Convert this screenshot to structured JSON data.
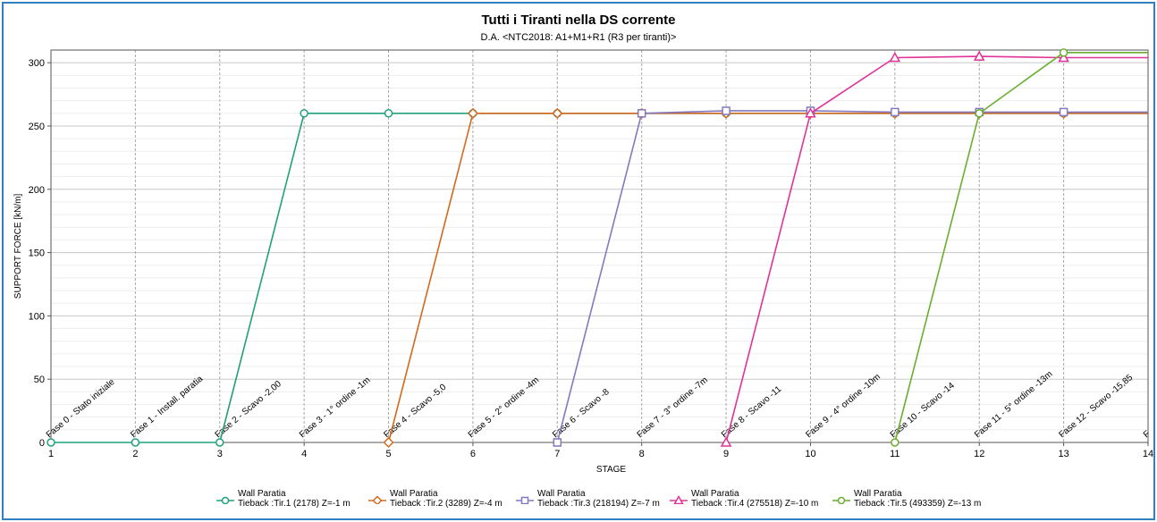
{
  "chart_data": {
    "type": "line",
    "title": "Tutti i Tiranti nella DS corrente",
    "subtitle": "D.A. <NTC2018: A1+M1+R1 (R3 per tiranti)>",
    "xlabel": "STAGE",
    "ylabel": "SUPPORT FORCE [kN/m]",
    "xlim": [
      1,
      14
    ],
    "ylim": [
      0,
      310
    ],
    "x_ticks": [
      "1",
      "2",
      "3",
      "4",
      "5",
      "6",
      "7",
      "8",
      "9",
      "10",
      "11",
      "12",
      "13",
      "14"
    ],
    "y_ticks": [
      "0",
      "50",
      "100",
      "150",
      "200",
      "250",
      "300"
    ],
    "stage_labels": [
      "Fase 0 - Stato iniziale",
      "Fase 1 - Install. paratia",
      "Fase 2 - Scavo -2,00",
      "Fase 3 - 1° ordine -1m",
      "Fase 4 - Scavo -5,0",
      "Fase 5 - 2° ordine -4m",
      "Fase 6 - Scavo -8",
      "Fase 7 - 3° ordine -7m",
      "Fase 8 - Scavo -11",
      "Fase 9 - 4° ordine -10m",
      "Fase 10 - Scavo -14",
      "Fase 11 - 5° ordine -13m",
      "Fase 12 - Scavo -15,85",
      "F"
    ],
    "grid": true,
    "legend_position": "bottom",
    "series": [
      {
        "name": "Wall Paratia",
        "name2": "Tieback :Tir.1 (2178) Z=-1 m",
        "color": "#21a07c",
        "marker": "circle",
        "x": [
          1,
          2,
          3,
          4,
          5,
          6,
          7,
          8,
          9,
          10,
          11,
          12,
          13,
          14
        ],
        "y": [
          0,
          0,
          0,
          260,
          260,
          260,
          260,
          260,
          260,
          260,
          260,
          260,
          260,
          260
        ]
      },
      {
        "name": "Wall Paratia",
        "name2": "Tieback :Tir.2 (3289) Z=-4 m",
        "color": "#d2691e",
        "marker": "diamond",
        "x": [
          5,
          6,
          7,
          8,
          9,
          10,
          11,
          12,
          13,
          14
        ],
        "y": [
          0,
          260,
          260,
          260,
          260,
          260,
          260,
          260,
          260,
          260
        ]
      },
      {
        "name": "Wall Paratia",
        "name2": "Tieback :Tir.3 (218194) Z=-7 m",
        "color": "#8479bd",
        "marker": "square",
        "x": [
          7,
          8,
          9,
          10,
          11,
          12,
          13,
          14
        ],
        "y": [
          0,
          260,
          262,
          262,
          261,
          261,
          261,
          261
        ]
      },
      {
        "name": "Wall Paratia",
        "name2": "Tieback :Tir.4 (275518) Z=-10 m",
        "color": "#e0329a",
        "marker": "triangle",
        "x": [
          9,
          10,
          11,
          12,
          13,
          14
        ],
        "y": [
          0,
          260,
          304,
          305,
          304,
          304
        ]
      },
      {
        "name": "Wall Paratia",
        "name2": "Tieback :Tir.5 (493359) Z=-13 m",
        "color": "#6aae2e",
        "marker": "circle",
        "x": [
          11,
          12,
          13,
          14
        ],
        "y": [
          0,
          260,
          308,
          308
        ]
      }
    ]
  }
}
